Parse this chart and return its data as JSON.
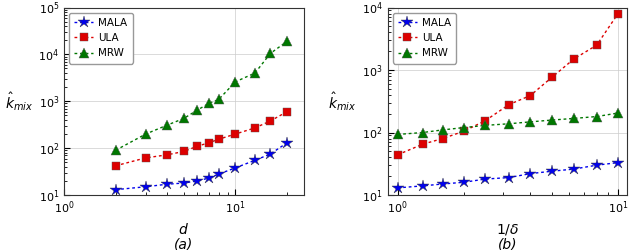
{
  "subplot_a": {
    "xlabel": "$d$",
    "ylabel": "$\\hat{k}_{mix}$",
    "xlim": [
      1.0,
      25.0
    ],
    "ylim": [
      10,
      100000
    ],
    "yticks": [
      10,
      100,
      1000,
      10000,
      100000
    ],
    "xticks_major": [
      1,
      10
    ],
    "mala_x": [
      2,
      3,
      4,
      5,
      6,
      7,
      8,
      10,
      13,
      16,
      20
    ],
    "mala_y": [
      13,
      15,
      17,
      18,
      20,
      23,
      28,
      38,
      55,
      75,
      130
    ],
    "ula_x": [
      2,
      3,
      4,
      5,
      6,
      7,
      8,
      10,
      13,
      16,
      20
    ],
    "ula_y": [
      42,
      62,
      72,
      85,
      110,
      130,
      155,
      200,
      270,
      380,
      600
    ],
    "mrw_x": [
      2,
      3,
      4,
      5,
      6,
      7,
      8,
      10,
      13,
      16,
      20
    ],
    "mrw_y": [
      90,
      200,
      310,
      430,
      650,
      900,
      1100,
      2600,
      4000,
      10500,
      19000
    ]
  },
  "subplot_b": {
    "xlabel": "$1/\\delta$",
    "ylabel": "$\\hat{k}_{mix}$",
    "xlim": [
      0.9,
      11.0
    ],
    "ylim": [
      10,
      10000
    ],
    "yticks": [
      10,
      100,
      1000,
      10000
    ],
    "xticks_major": [
      1,
      10
    ],
    "mala_x": [
      1.0,
      1.3,
      1.6,
      2.0,
      2.5,
      3.2,
      4.0,
      5.0,
      6.3,
      8.0,
      10.0
    ],
    "mala_y": [
      13,
      14,
      15,
      16,
      18,
      19,
      22,
      24,
      26,
      30,
      33
    ],
    "ula_x": [
      1.0,
      1.3,
      1.6,
      2.0,
      2.5,
      3.2,
      4.0,
      5.0,
      6.3,
      8.0,
      10.0
    ],
    "ula_y": [
      44,
      65,
      80,
      105,
      155,
      280,
      390,
      760,
      1500,
      2500,
      8000
    ],
    "mrw_x": [
      1.0,
      1.3,
      1.6,
      2.0,
      2.5,
      3.2,
      4.0,
      5.0,
      6.3,
      8.0,
      10.0
    ],
    "mrw_y": [
      93,
      100,
      110,
      120,
      130,
      138,
      148,
      158,
      168,
      180,
      205
    ]
  },
  "mala_color": "#0000ee",
  "ula_color": "#dd0000",
  "mrw_color": "#007700",
  "bg_color": "#ffffff",
  "grid_color": "#cccccc"
}
